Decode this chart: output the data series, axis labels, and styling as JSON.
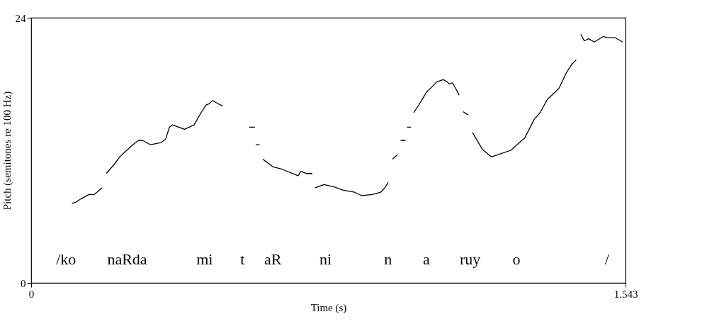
{
  "chart_data": {
    "type": "line",
    "xlabel": "Time (s)",
    "ylabel": "Pitch (semitones re 100 Hz)",
    "xlim": [
      0,
      1.543
    ],
    "xticks": [
      0,
      1.543
    ],
    "ylim": [
      0,
      24
    ],
    "yticks": [
      0,
      24
    ],
    "grid": false,
    "marker": "none",
    "line_style": "solid",
    "series": [
      {
        "color": "#000000",
        "x": [
          0.106,
          0.116,
          0.129,
          0.15,
          0.164,
          0.184,
          0.19,
          0.195,
          0.215,
          0.23,
          0.245,
          0.264,
          0.279,
          0.289,
          0.31,
          0.337,
          0.349,
          0.359,
          0.367,
          0.398,
          0.417,
          0.423,
          0.441,
          0.454,
          0.461,
          0.471,
          0.481,
          0.497,
          0.53,
          0.566,
          0.581,
          0.582,
          0.583,
          0.593,
          0.595,
          0.601,
          0.613,
          0.628,
          0.65,
          0.693,
          0.7,
          0.714,
          0.73,
          0.733,
          0.737,
          0.76,
          0.785,
          0.809,
          0.84,
          0.858,
          0.886,
          0.907,
          0.918,
          0.927,
          0.932,
          0.938,
          0.951,
          0.956,
          0.959,
          0.972,
          0.973,
          0.976,
          0.986,
          0.99,
          0.993,
          1.008,
          1.027,
          1.042,
          1.053,
          1.07,
          1.08,
          1.085,
          1.094,
          1.102,
          1.111,
          1.116,
          1.121,
          1.135,
          1.14,
          1.146,
          1.171,
          1.195,
          1.22,
          1.245,
          1.281,
          1.306,
          1.321,
          1.34,
          1.37,
          1.389,
          1.404,
          1.415,
          1.42,
          1.427,
          1.436,
          1.447,
          1.462,
          1.485,
          1.496,
          1.515,
          1.536
        ],
        "values": [
          7.2,
          7.3,
          7.6,
          8.0,
          8.0,
          8.6,
          null,
          9.9,
          10.7,
          11.4,
          11.9,
          12.5,
          12.9,
          12.9,
          12.5,
          12.7,
          13.0,
          14.1,
          14.3,
          13.9,
          14.2,
          14.3,
          15.4,
          16.1,
          16.2,
          16.5,
          16.3,
          16.0,
          null,
          14.1,
          14.1,
          null,
          12.5,
          12.5,
          null,
          11.2,
          10.9,
          10.5,
          10.3,
          9.7,
          10.1,
          9.9,
          9.9,
          null,
          8.6,
          8.9,
          8.7,
          8.4,
          8.2,
          7.9,
          8.0,
          8.2,
          8.6,
          9.1,
          null,
          11.2,
          11.6,
          null,
          12.9,
          12.9,
          null,
          14.1,
          14.1,
          null,
          15.4,
          16.2,
          17.3,
          17.8,
          18.2,
          18.4,
          18.2,
          18.0,
          18.1,
          17.6,
          17.0,
          null,
          15.5,
          15.2,
          null,
          13.6,
          12.1,
          11.4,
          11.7,
          12.0,
          13.1,
          14.8,
          15.4,
          16.6,
          17.6,
          19.0,
          19.8,
          20.2,
          null,
          22.5,
          21.9,
          22.1,
          21.8,
          22.3,
          22.2,
          22.2,
          21.8
        ]
      }
    ],
    "annotations": [
      "/ko",
      "naRda",
      "mi",
      "t",
      "aR",
      "ni",
      "n",
      "a",
      "ruy",
      "o",
      "/"
    ]
  }
}
